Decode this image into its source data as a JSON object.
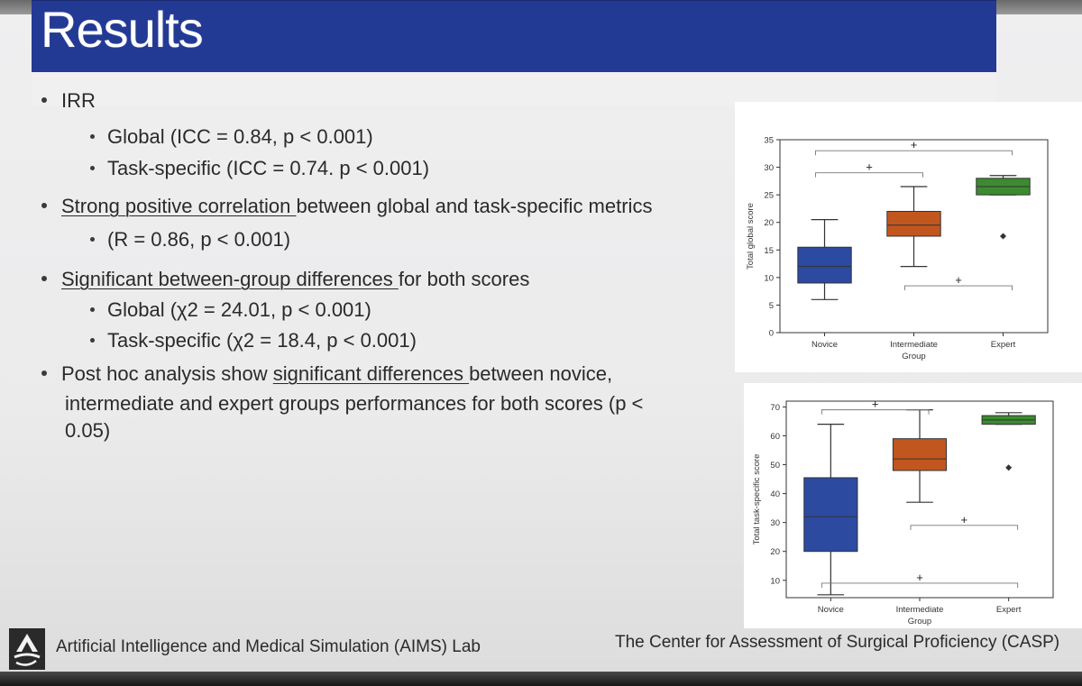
{
  "slide": {
    "title": "Results",
    "bullets": {
      "irr": "IRR",
      "irr_global": "Global (ICC = 0.84, p < 0.001)",
      "irr_task": "Task-specific (ICC = 0.74. p < 0.001)",
      "corr_ul": "Strong positive correlation ",
      "corr_rest": "between global and task-specific metrics",
      "corr_sub": "(R = 0.86, p < 0.001)",
      "sig_ul": "Significant between-group differences ",
      "sig_rest": "for both scores",
      "sig_global": "Global (χ2 = 24.01, p < 0.001)",
      "sig_task": "Task-specific (χ2 = 18.4, p < 0.001)",
      "posthoc_a": "Post hoc analysis show ",
      "posthoc_ul": "significant differences ",
      "posthoc_b": "between novice,",
      "posthoc_line2": "intermediate and expert groups performances for both scores (p <",
      "posthoc_line3": "0.05)"
    },
    "footer_left": "Artificial Intelligence and Medical Simulation (AIMS) Lab",
    "footer_right": "The Center for Assessment of Surgical Proficiency (CASP)",
    "logo_icon": "aims-lab-logo-icon"
  },
  "chart_data": [
    {
      "type": "box",
      "title": "",
      "xlabel": "Group",
      "ylabel": "Total global score",
      "ylim": [
        0,
        35
      ],
      "yticks": [
        0,
        5,
        10,
        15,
        20,
        25,
        30,
        35
      ],
      "categories": [
        "Novice",
        "Intermediate",
        "Expert"
      ],
      "colors": [
        "#2d4aa1",
        "#c2561f",
        "#3d8a31"
      ],
      "boxes": [
        {
          "name": "Novice",
          "whislo": 6,
          "q1": 9,
          "med": 12,
          "q3": 15.5,
          "whishi": 20.5
        },
        {
          "name": "Intermediate",
          "whislo": 12,
          "q1": 17.5,
          "med": 19.5,
          "q3": 22,
          "whishi": 26.5
        },
        {
          "name": "Expert",
          "whislo": 25,
          "q1": 25,
          "med": 26.5,
          "q3": 28,
          "whishi": 28.5
        }
      ],
      "outliers": [
        {
          "category": "Expert",
          "value": 17.5
        }
      ],
      "annotations": [
        {
          "from": "Novice",
          "to": "Intermediate",
          "label": "+",
          "level": 29
        },
        {
          "from": "Novice",
          "to": "Expert",
          "label": "+",
          "level": 33
        },
        {
          "from": "Intermediate",
          "to": "Expert",
          "label": "+",
          "level": 8.5
        }
      ]
    },
    {
      "type": "box",
      "title": "",
      "xlabel": "Group",
      "ylabel": "Total task-specific score",
      "ylim": [
        4,
        72
      ],
      "yticks": [
        10,
        20,
        30,
        40,
        50,
        60,
        70
      ],
      "categories": [
        "Novice",
        "Intermediate",
        "Expert"
      ],
      "colors": [
        "#2d4aa1",
        "#c2561f",
        "#3d8a31"
      ],
      "boxes": [
        {
          "name": "Novice",
          "whislo": 5,
          "q1": 20,
          "med": 32,
          "q3": 45.5,
          "whishi": 64
        },
        {
          "name": "Intermediate",
          "whislo": 37,
          "q1": 48,
          "med": 52,
          "q3": 59,
          "whishi": 69
        },
        {
          "name": "Expert",
          "whislo": 64,
          "q1": 64,
          "med": 65.5,
          "q3": 67,
          "whishi": 68
        }
      ],
      "outliers": [
        {
          "category": "Expert",
          "value": 49
        }
      ],
      "annotations": [
        {
          "from": "Novice",
          "to": "Intermediate",
          "label": "+",
          "level": 69
        },
        {
          "from": "Intermediate",
          "to": "Expert",
          "label": "+",
          "level": 29
        },
        {
          "from": "Novice",
          "to": "Expert",
          "label": "+",
          "level": 9
        }
      ]
    }
  ]
}
